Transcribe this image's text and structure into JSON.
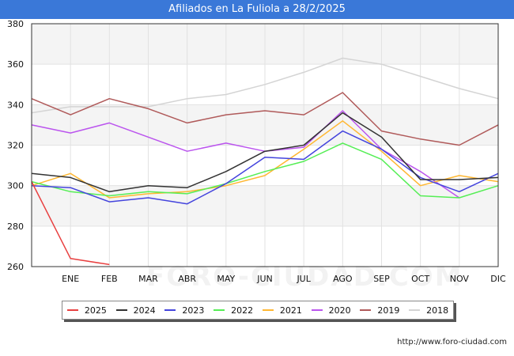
{
  "title": "Afiliados en La Fuliola a 28/2/2025",
  "source": "http://www.foro-ciudad.com",
  "watermark": "FORO-CIUDAD.COM",
  "chart_data": {
    "type": "line",
    "categories": [
      "",
      "ENE",
      "FEB",
      "MAR",
      "ABR",
      "MAY",
      "JUN",
      "JUL",
      "AGO",
      "SEP",
      "OCT",
      "NOV",
      "DIC"
    ],
    "ylim": [
      260,
      380
    ],
    "yticks": [
      260,
      280,
      300,
      320,
      340,
      360,
      380
    ],
    "grid": true,
    "legend_position": "bottom",
    "series": [
      {
        "name": "2025",
        "color": "#e84040",
        "values": [
          302,
          264,
          261,
          null,
          null,
          null,
          null,
          null,
          null,
          null,
          null,
          null,
          null
        ]
      },
      {
        "name": "2024",
        "color": "#333333",
        "values": [
          306,
          304,
          297,
          300,
          299,
          307,
          317,
          320,
          336,
          324,
          303,
          303,
          304
        ]
      },
      {
        "name": "2023",
        "color": "#4444dd",
        "values": [
          300,
          299,
          292,
          294,
          291,
          301,
          314,
          313,
          327,
          318,
          304,
          297,
          306
        ]
      },
      {
        "name": "2022",
        "color": "#55ee55",
        "values": [
          302,
          297,
          295,
          297,
          296,
          301,
          307,
          312,
          321,
          313,
          295,
          294,
          300
        ]
      },
      {
        "name": "2021",
        "color": "#ffb732",
        "values": [
          300,
          306,
          294,
          296,
          297,
          300,
          305,
          318,
          332,
          317,
          300,
          305,
          302
        ]
      },
      {
        "name": "2020",
        "color": "#bb55ee",
        "values": [
          330,
          326,
          331,
          324,
          317,
          321,
          317,
          319,
          337,
          318,
          307,
          294,
          null
        ]
      },
      {
        "name": "2019",
        "color": "#b05a5a",
        "values": [
          343,
          335,
          343,
          338,
          331,
          335,
          337,
          335,
          346,
          327,
          323,
          320,
          330
        ]
      },
      {
        "name": "2018",
        "color": "#d4d4d4",
        "values": [
          336,
          339,
          339,
          339,
          343,
          345,
          350,
          356,
          363,
          360,
          354,
          348,
          343
        ]
      }
    ]
  }
}
